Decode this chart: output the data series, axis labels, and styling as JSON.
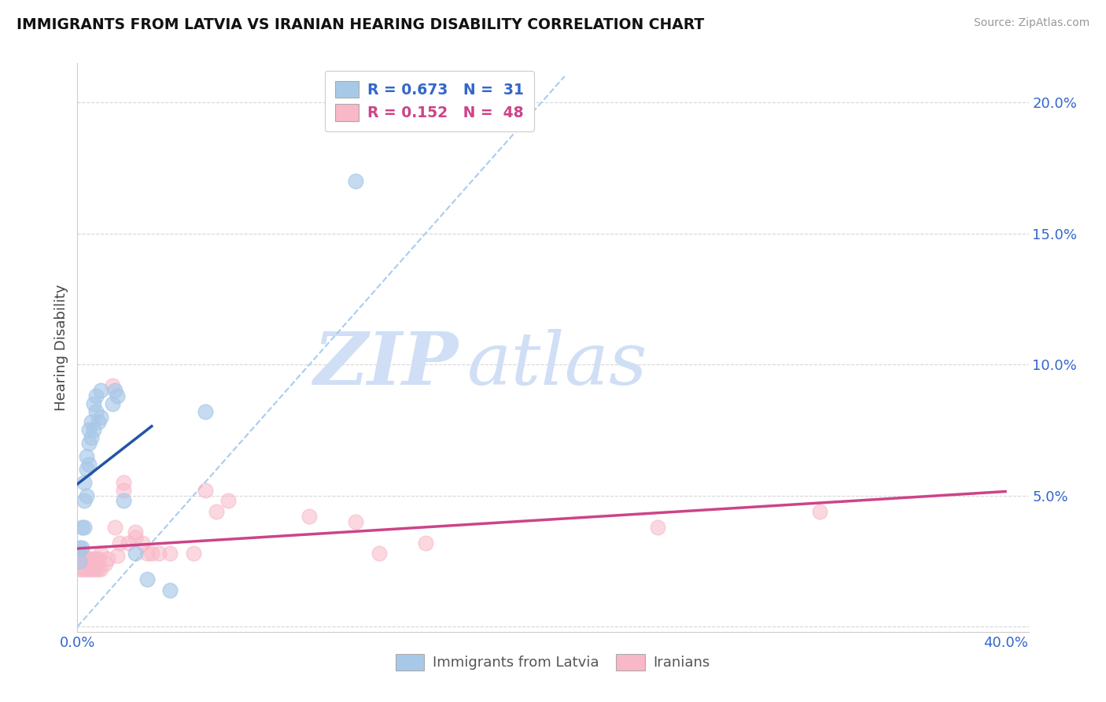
{
  "title": "IMMIGRANTS FROM LATVIA VS IRANIAN HEARING DISABILITY CORRELATION CHART",
  "source": "Source: ZipAtlas.com",
  "ylabel": "Hearing Disability",
  "xlim": [
    0.0,
    0.41
  ],
  "ylim": [
    -0.002,
    0.215
  ],
  "xticks": [
    0.0,
    0.05,
    0.1,
    0.15,
    0.2,
    0.25,
    0.3,
    0.35,
    0.4
  ],
  "yticks": [
    0.0,
    0.05,
    0.1,
    0.15,
    0.2
  ],
  "ytick_labels": [
    "",
    "5.0%",
    "10.0%",
    "15.0%",
    "20.0%"
  ],
  "xtick_labels": [
    "0.0%",
    "",
    "",
    "",
    "",
    "",
    "",
    "",
    "40.0%"
  ],
  "color_latvia": "#a8c8e8",
  "color_iran": "#f8b8c8",
  "color_line_latvia": "#2255aa",
  "color_line_iran": "#cc4488",
  "color_diag": "#aaccee",
  "color_grid": "#cccccc",
  "watermark_zip": "ZIP",
  "watermark_atlas": "atlas",
  "watermark_color": "#d0dff5",
  "latvia_x": [
    0.001,
    0.001,
    0.002,
    0.002,
    0.003,
    0.003,
    0.003,
    0.004,
    0.004,
    0.004,
    0.005,
    0.005,
    0.005,
    0.006,
    0.006,
    0.007,
    0.007,
    0.008,
    0.008,
    0.009,
    0.01,
    0.01,
    0.015,
    0.016,
    0.017,
    0.02,
    0.025,
    0.03,
    0.04,
    0.055,
    0.12
  ],
  "latvia_y": [
    0.025,
    0.03,
    0.03,
    0.038,
    0.038,
    0.048,
    0.055,
    0.05,
    0.06,
    0.065,
    0.062,
    0.07,
    0.075,
    0.072,
    0.078,
    0.075,
    0.085,
    0.082,
    0.088,
    0.078,
    0.08,
    0.09,
    0.085,
    0.09,
    0.088,
    0.048,
    0.028,
    0.018,
    0.014,
    0.082,
    0.17
  ],
  "iran_x": [
    0.001,
    0.001,
    0.001,
    0.002,
    0.002,
    0.002,
    0.003,
    0.003,
    0.004,
    0.004,
    0.005,
    0.005,
    0.006,
    0.006,
    0.007,
    0.007,
    0.008,
    0.008,
    0.009,
    0.009,
    0.01,
    0.01,
    0.012,
    0.013,
    0.015,
    0.016,
    0.017,
    0.018,
    0.02,
    0.02,
    0.022,
    0.025,
    0.025,
    0.028,
    0.03,
    0.032,
    0.035,
    0.04,
    0.05,
    0.055,
    0.06,
    0.065,
    0.1,
    0.12,
    0.13,
    0.15,
    0.25,
    0.32
  ],
  "iran_y": [
    0.022,
    0.026,
    0.028,
    0.022,
    0.026,
    0.028,
    0.022,
    0.026,
    0.022,
    0.026,
    0.022,
    0.026,
    0.022,
    0.026,
    0.022,
    0.026,
    0.022,
    0.026,
    0.022,
    0.026,
    0.022,
    0.028,
    0.024,
    0.026,
    0.092,
    0.038,
    0.027,
    0.032,
    0.052,
    0.055,
    0.032,
    0.036,
    0.034,
    0.032,
    0.028,
    0.028,
    0.028,
    0.028,
    0.028,
    0.052,
    0.044,
    0.048,
    0.042,
    0.04,
    0.028,
    0.032,
    0.038,
    0.044
  ],
  "legend_r1": "R = 0.673",
  "legend_n1": "N =  31",
  "legend_r2": "R = 0.152",
  "legend_n2": "N =  48",
  "legend_color1": "#3366cc",
  "legend_color2": "#cc4488"
}
